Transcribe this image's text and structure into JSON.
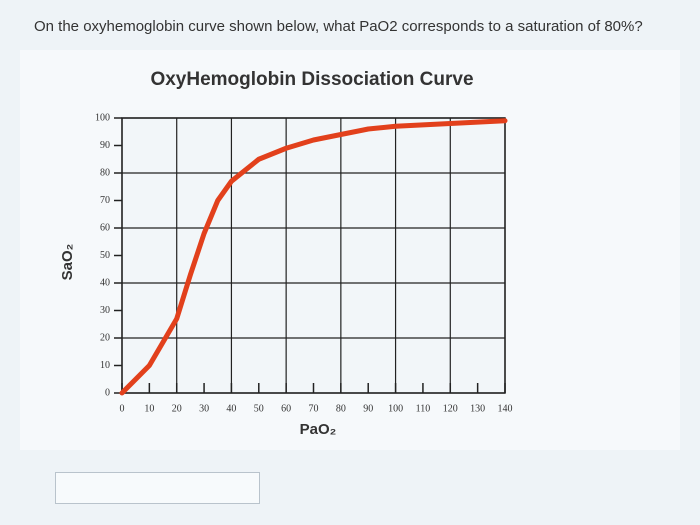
{
  "question": "On the oxyhemoglobin curve shown below, what PaO2 corresponds to a saturation of 80%?",
  "chart_data": {
    "type": "line",
    "title": "OxyHemoglobin Dissociation Curve",
    "x_label": "PaO₂",
    "y_label": "SaO₂",
    "x": [
      0,
      10,
      20,
      25,
      30,
      35,
      40,
      50,
      60,
      70,
      80,
      90,
      100,
      120,
      140
    ],
    "series": [
      {
        "color": "#e2401c",
        "values": [
          0,
          10,
          27,
          43,
          58,
          70,
          77,
          85,
          89,
          92,
          94,
          96,
          97,
          98,
          99
        ]
      }
    ],
    "xlim": [
      0,
      140
    ],
    "xticks": [
      0,
      10,
      20,
      30,
      40,
      50,
      60,
      70,
      80,
      90,
      100,
      110,
      120,
      130,
      140
    ],
    "ylim": [
      0,
      100
    ],
    "yticks": [
      0,
      10,
      20,
      30,
      40,
      50,
      60,
      70,
      80,
      90,
      100
    ],
    "grid": true
  }
}
